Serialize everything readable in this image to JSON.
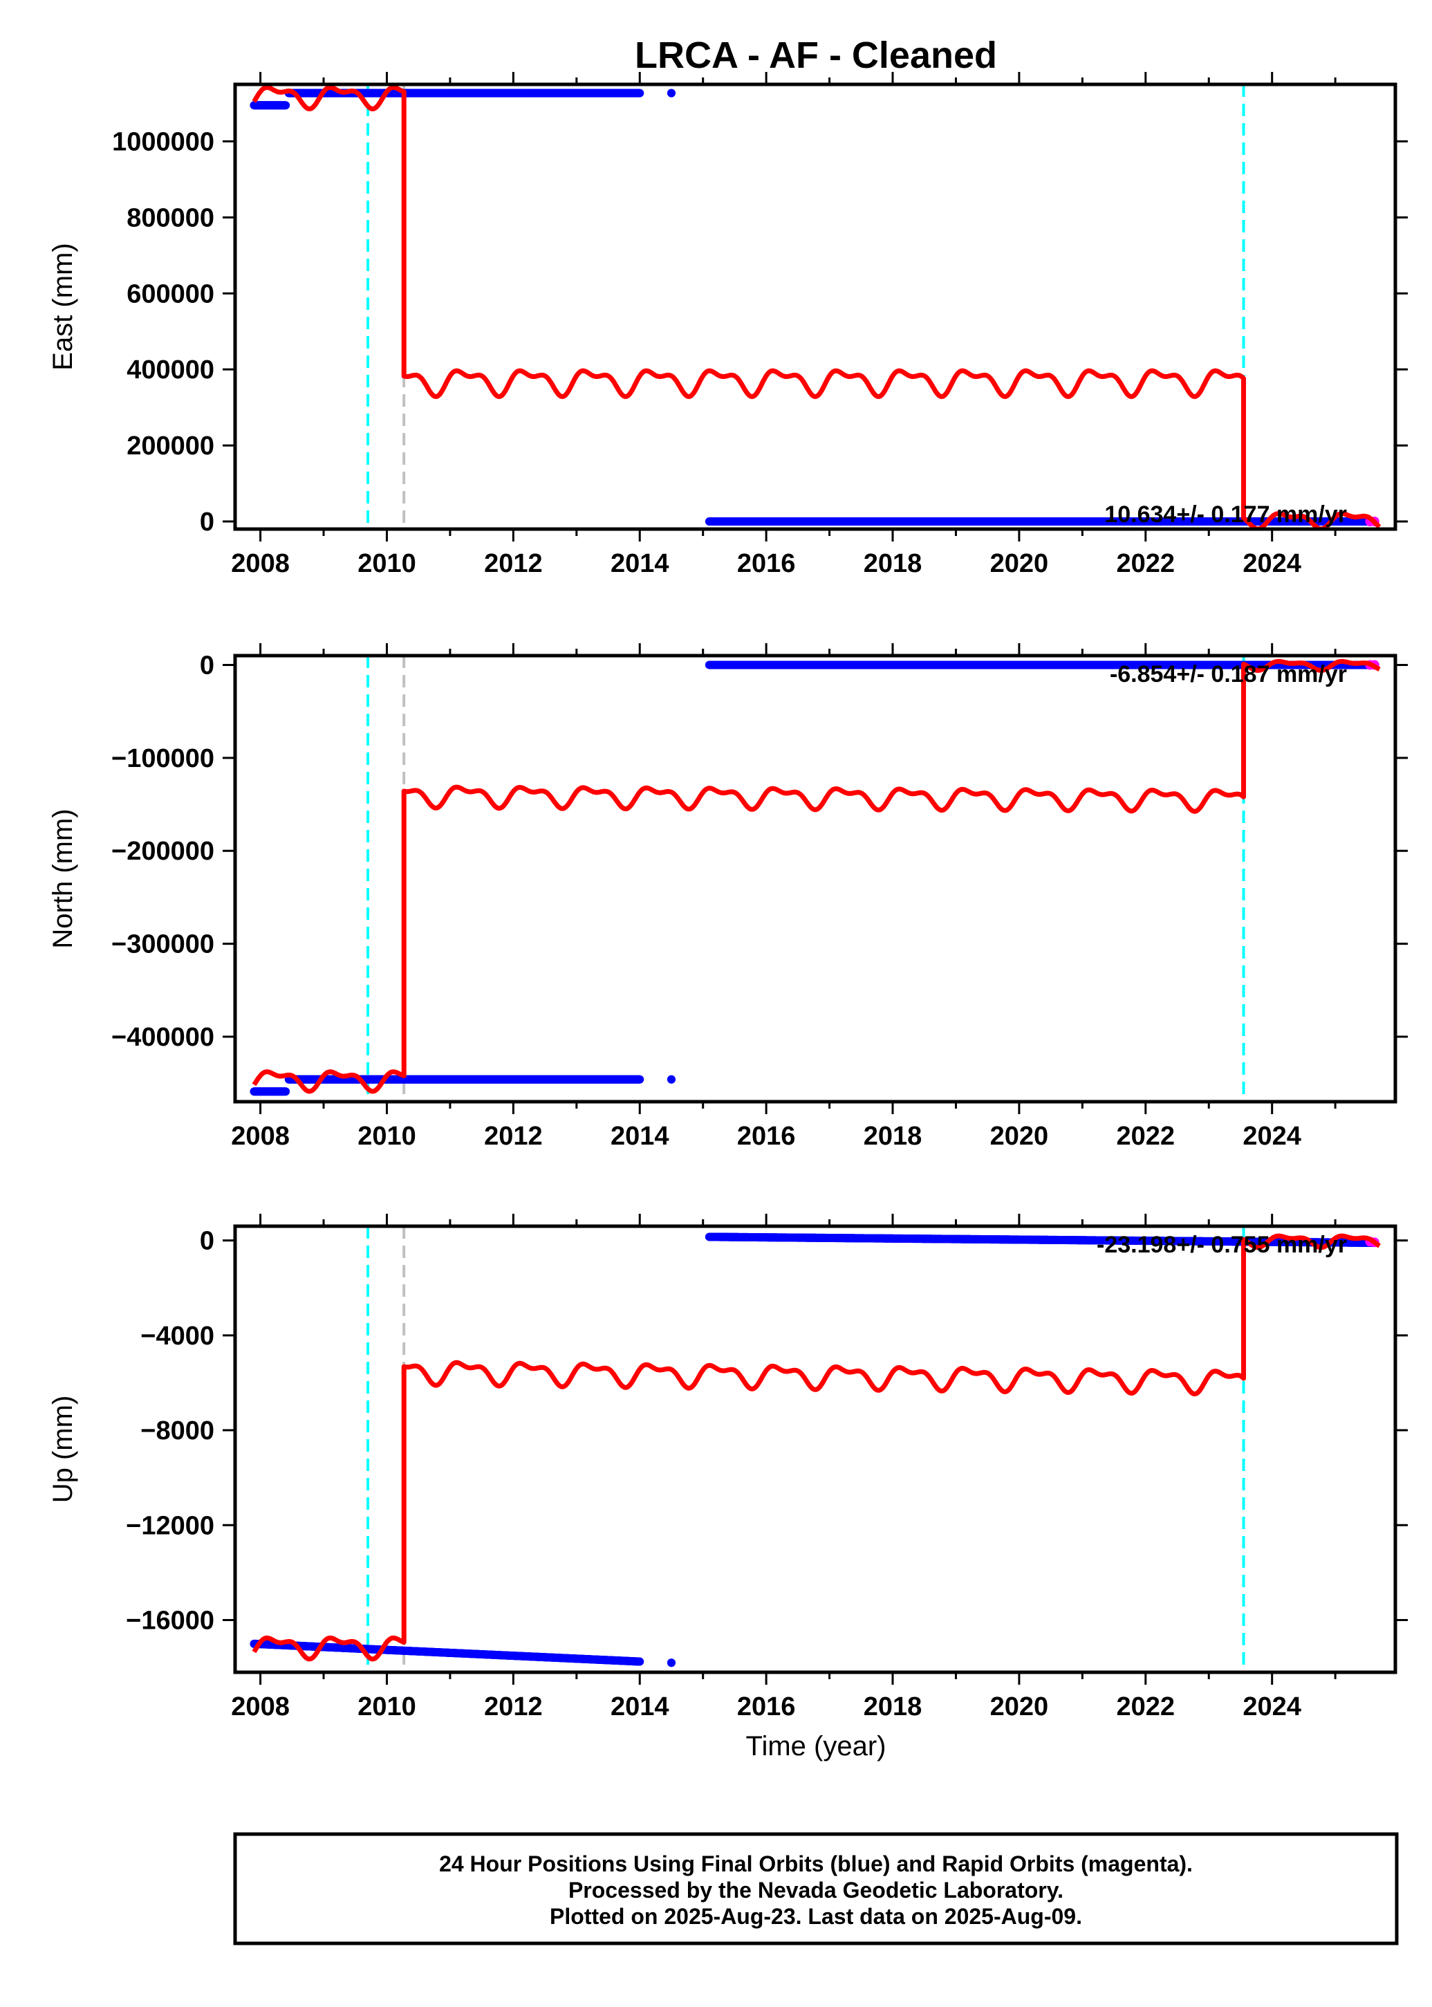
{
  "title": "LRCA  - AF - Cleaned",
  "footer_lines": [
    "24 Hour Positions Using Final Orbits (blue) and Rapid Orbits (magenta).",
    "Processed by the Nevada Geodetic Laboratory.",
    "Plotted on 2025-Aug-23. Last data on 2025-Aug-09."
  ],
  "colors": {
    "final_orbits": "#0000ff",
    "rapid_orbits": "#ff00ff",
    "model_fit": "#ff0000",
    "equipment_change": "#00ffff",
    "other_event": "#c0c0c0"
  },
  "chart_data": [
    {
      "type": "scatter",
      "ylabel": "East (mm)",
      "xlabel": "",
      "xlim": [
        2007.6,
        2025.95
      ],
      "ylim": [
        -20000,
        1150000
      ],
      "xticks": [
        2008,
        2010,
        2012,
        2014,
        2016,
        2018,
        2020,
        2022,
        2024
      ],
      "yticks": [
        0,
        200000,
        400000,
        600000,
        800000,
        1000000
      ],
      "grid": false,
      "rate_label": "10.634+/- 0.177 mm/yr",
      "vlines_cyan": [
        2009.7,
        2023.55
      ],
      "vlines_gray": [
        2010.27
      ],
      "series": [
        {
          "segments": [
            {
              "x0": 2007.9,
              "x1": 2008.4,
              "y0": 1095000,
              "y1": 1095000
            },
            {
              "x0": 2008.45,
              "x1": 2014.0,
              "y0": 1127000,
              "y1": 1127000
            },
            {
              "x0": 2014.5,
              "x1": 2014.5,
              "y0": 1127000,
              "y1": 1127000
            },
            {
              "x0": 2015.1,
              "x1": 2025.6,
              "y0": 0,
              "y1": 0
            }
          ]
        },
        {
          "x": [
            2025.55,
            2025.62
          ],
          "y": [
            0,
            0
          ]
        },
        {
          "segments": [
            {
              "x0": 2007.9,
              "x1": 2010.27,
              "base": 1120000,
              "trend": 0,
              "amp": 35000
            },
            {
              "x0": 2010.27,
              "x1": 2023.55,
              "base": 370000,
              "trend": 0,
              "amp": 42000
            },
            {
              "x0": 2023.55,
              "x1": 2025.7,
              "base": 5000,
              "trend": 0,
              "amp": 25000
            }
          ]
        }
      ]
    },
    {
      "type": "scatter",
      "ylabel": "North (mm)",
      "xlabel": "",
      "xlim": [
        2007.6,
        2025.95
      ],
      "ylim": [
        -470000,
        10000
      ],
      "xticks": [
        2008,
        2010,
        2012,
        2014,
        2016,
        2018,
        2020,
        2022,
        2024
      ],
      "yticks": [
        0,
        -100000,
        -200000,
        -300000,
        -400000
      ],
      "grid": false,
      "rate_label": "-6.854+/- 0.187 mm/yr",
      "vlines_cyan": [
        2009.7,
        2023.55
      ],
      "vlines_gray": [
        2010.27
      ],
      "series": [
        {
          "segments": [
            {
              "x0": 2007.9,
              "x1": 2008.4,
              "y0": -459000,
              "y1": -459000
            },
            {
              "x0": 2008.45,
              "x1": 2014.0,
              "y0": -446000,
              "y1": -446000
            },
            {
              "x0": 2014.5,
              "x1": 2014.5,
              "y0": -446000,
              "y1": -446000
            },
            {
              "x0": 2015.1,
              "x1": 2025.6,
              "y0": 0,
              "y1": 0
            }
          ]
        },
        {
          "x": [
            2025.55,
            2025.62
          ],
          "y": [
            0,
            0
          ]
        },
        {
          "segments": [
            {
              "x0": 2007.9,
              "x1": 2010.27,
              "base": -446000,
              "trend": 0,
              "amp": 13000
            },
            {
              "x0": 2010.27,
              "x1": 2023.55,
              "base": -140000,
              "trend": -4000,
              "amp": 14000
            },
            {
              "x0": 2023.55,
              "x1": 2025.7,
              "base": 0,
              "trend": 0,
              "amp": 6000
            }
          ]
        }
      ]
    },
    {
      "type": "scatter",
      "ylabel": "Up (mm)",
      "xlabel": "Time (year)",
      "xlim": [
        2007.6,
        2025.95
      ],
      "ylim": [
        -18200,
        600
      ],
      "xticks": [
        2008,
        2010,
        2012,
        2014,
        2016,
        2018,
        2020,
        2022,
        2024
      ],
      "yticks": [
        0,
        -4000,
        -8000,
        -12000,
        -16000
      ],
      "grid": false,
      "rate_label": "-23.198+/- 0.755 mm/yr",
      "vlines_cyan": [
        2009.7,
        2023.55
      ],
      "vlines_gray": [
        2010.27
      ],
      "series": [
        {
          "segments": [
            {
              "x0": 2007.9,
              "x1": 2014.0,
              "y0": -17000,
              "y1": -17750
            },
            {
              "x0": 2014.5,
              "x1": 2014.5,
              "y0": -17800,
              "y1": -17800
            },
            {
              "x0": 2015.1,
              "x1": 2025.6,
              "y0": 150,
              "y1": -100
            }
          ]
        },
        {
          "x": [
            2025.55,
            2025.62
          ],
          "y": [
            -50,
            -80
          ]
        },
        {
          "segments": [
            {
              "x0": 2007.9,
              "x1": 2010.27,
              "base": -17100,
              "trend": 0,
              "amp": 550
            },
            {
              "x0": 2010.27,
              "x1": 2023.55,
              "base": -5500,
              "trend": -400,
              "amp": 600
            },
            {
              "x0": 2023.55,
              "x1": 2025.7,
              "base": 0,
              "trend": 0,
              "amp": 300
            }
          ]
        }
      ]
    }
  ]
}
